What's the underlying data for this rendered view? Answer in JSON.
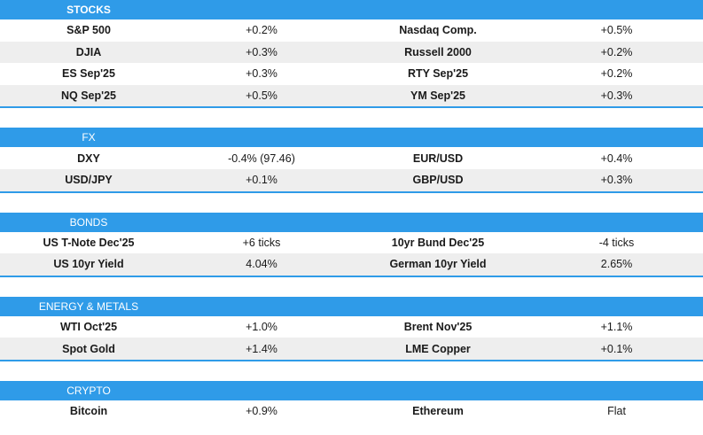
{
  "sections": [
    {
      "title": "STOCKS",
      "rows": [
        [
          "S&P 500",
          "+0.2%",
          "Nasdaq Comp.",
          "+0.5%"
        ],
        [
          "DJIA",
          "+0.3%",
          "Russell 2000",
          "+0.2%"
        ],
        [
          "ES Sep'25",
          "+0.3%",
          "RTY Sep'25",
          "+0.2%"
        ],
        [
          "NQ Sep'25",
          "+0.5%",
          "YM Sep'25",
          "+0.3%"
        ]
      ]
    },
    {
      "title": "FX",
      "rows": [
        [
          "DXY",
          "-0.4% (97.46)",
          "EUR/USD",
          "+0.4%"
        ],
        [
          "USD/JPY",
          "+0.1%",
          "GBP/USD",
          "+0.3%"
        ]
      ]
    },
    {
      "title": "BONDS",
      "rows": [
        [
          "US T-Note Dec'25",
          "+6 ticks",
          "10yr Bund Dec'25",
          "-4 ticks"
        ],
        [
          "US 10yr Yield",
          "4.04%",
          "German 10yr Yield",
          "2.65%"
        ]
      ]
    },
    {
      "title": "ENERGY & METALS",
      "rows": [
        [
          "WTI Oct'25",
          "+1.0%",
          "Brent Nov'25",
          "+1.1%"
        ],
        [
          "Spot Gold",
          "+1.4%",
          "LME Copper",
          "+0.1%"
        ]
      ]
    },
    {
      "title": "CRYPTO",
      "rows": [
        [
          "Bitcoin",
          "+0.9%",
          "Ethereum",
          "Flat"
        ]
      ]
    }
  ]
}
